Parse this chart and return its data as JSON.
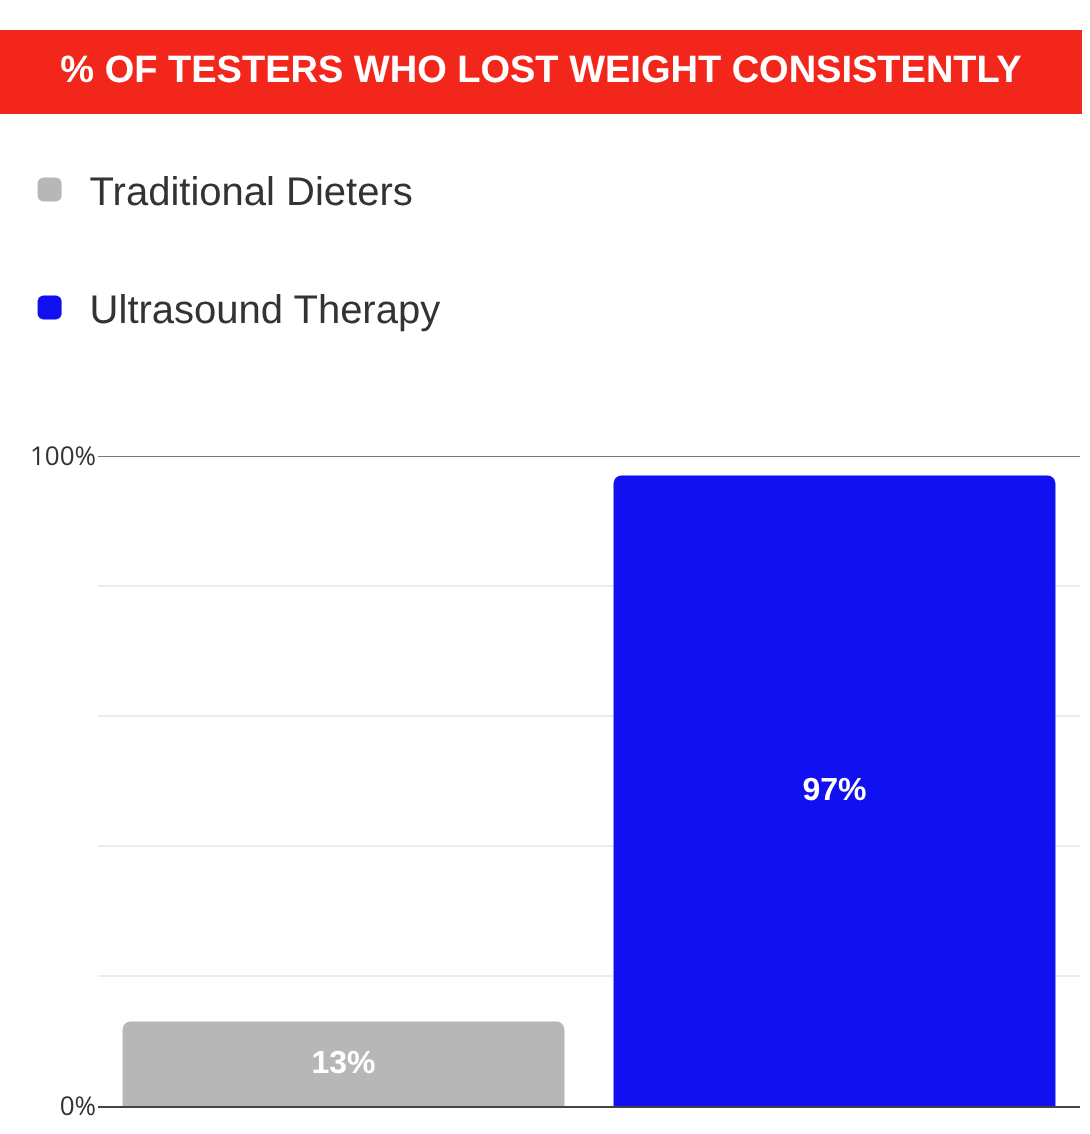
{
  "chart_data": {
    "type": "bar",
    "title": "% OF TESTERS WHO LOST WEIGHT CONSISTENTLY",
    "categories": [
      null,
      null
    ],
    "series": [
      {
        "name": "Traditional Dieters",
        "color": "#b7b7b7",
        "values": [
          13,
          null
        ],
        "value_labels": [
          "13%",
          null
        ]
      },
      {
        "name": "Ultrasound Therapy",
        "color": "#1010f0",
        "values": [
          null,
          97
        ],
        "value_labels": [
          null,
          "97%"
        ]
      }
    ],
    "ylim": [
      0,
      100
    ],
    "yticks": [
      {
        "value": 0,
        "label": "0%"
      },
      {
        "value": 20,
        "label": null
      },
      {
        "value": 40,
        "label": null
      },
      {
        "value": 60,
        "label": null
      },
      {
        "value": 80,
        "label": null
      },
      {
        "value": 100,
        "label": "100%"
      }
    ],
    "grid": "y",
    "legend": "top left"
  }
}
